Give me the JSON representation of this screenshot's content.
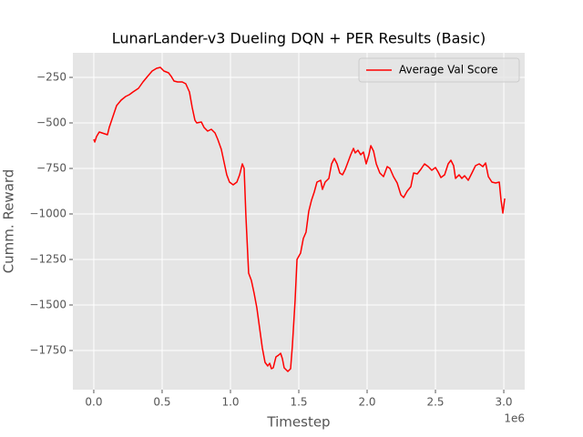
{
  "chart_data": {
    "type": "line",
    "title": "LunarLander-v3 Dueling DQN + PER Results (Basic)",
    "x_label": "Timestep",
    "y_label": "Cumm. Reward",
    "x_offset_label": "1e6",
    "grid": true,
    "legend_position": "upper right",
    "xlim": [
      -153000,
      3153000
    ],
    "ylim": [
      -1965,
      -115
    ],
    "xticks": [
      {
        "value": 0,
        "label": "0.0"
      },
      {
        "value": 500000,
        "label": "0.5"
      },
      {
        "value": 1000000,
        "label": "1.0"
      },
      {
        "value": 1500000,
        "label": "1.5"
      },
      {
        "value": 2000000,
        "label": "2.0"
      },
      {
        "value": 2500000,
        "label": "2.5"
      },
      {
        "value": 3000000,
        "label": "3.0"
      }
    ],
    "yticks": [
      {
        "value": -1750,
        "label": "−1750"
      },
      {
        "value": -1500,
        "label": "−1500"
      },
      {
        "value": -1250,
        "label": "−1250"
      },
      {
        "value": -1000,
        "label": "−1000"
      },
      {
        "value": -750,
        "label": "−750"
      },
      {
        "value": -500,
        "label": "−500"
      },
      {
        "value": -250,
        "label": "−250"
      }
    ],
    "x": [
      0,
      7000,
      20000,
      40000,
      60000,
      100000,
      113000,
      140000,
      167000,
      200000,
      233000,
      260000,
      287000,
      327000,
      360000,
      393000,
      427000,
      460000,
      487000,
      513000,
      547000,
      567000,
      587000,
      613000,
      647000,
      673000,
      700000,
      720000,
      740000,
      753000,
      787000,
      807000,
      833000,
      860000,
      887000,
      907000,
      933000,
      953000,
      973000,
      993000,
      1020000,
      1047000,
      1067000,
      1087000,
      1100000,
      1113000,
      1133000,
      1153000,
      1173000,
      1193000,
      1213000,
      1233000,
      1253000,
      1273000,
      1287000,
      1300000,
      1313000,
      1333000,
      1353000,
      1367000,
      1380000,
      1393000,
      1420000,
      1440000,
      1453000,
      1473000,
      1487000,
      1513000,
      1533000,
      1553000,
      1573000,
      1593000,
      1613000,
      1633000,
      1660000,
      1673000,
      1693000,
      1720000,
      1740000,
      1760000,
      1780000,
      1800000,
      1820000,
      1840000,
      1860000,
      1880000,
      1900000,
      1913000,
      1933000,
      1953000,
      1973000,
      1993000,
      2013000,
      2027000,
      2047000,
      2067000,
      2093000,
      2120000,
      2147000,
      2167000,
      2193000,
      2220000,
      2247000,
      2267000,
      2293000,
      2320000,
      2340000,
      2367000,
      2393000,
      2420000,
      2447000,
      2473000,
      2500000,
      2520000,
      2540000,
      2567000,
      2593000,
      2613000,
      2633000,
      2647000,
      2673000,
      2693000,
      2713000,
      2740000,
      2767000,
      2793000,
      2820000,
      2847000,
      2867000,
      2887000,
      2913000,
      2940000,
      2967000,
      2980000,
      2993000,
      3007000
    ],
    "series": [
      {
        "name": "Average Val Score",
        "color": "#ff0000",
        "values": [
          -590,
          -605,
          -575,
          -550,
          -555,
          -565,
          -525,
          -465,
          -405,
          -375,
          -355,
          -345,
          -330,
          -310,
          -275,
          -245,
          -215,
          -200,
          -195,
          -215,
          -225,
          -245,
          -270,
          -275,
          -275,
          -285,
          -330,
          -415,
          -485,
          -500,
          -495,
          -525,
          -545,
          -535,
          -555,
          -590,
          -645,
          -715,
          -785,
          -825,
          -840,
          -825,
          -785,
          -725,
          -750,
          -1010,
          -1325,
          -1365,
          -1435,
          -1515,
          -1625,
          -1735,
          -1815,
          -1835,
          -1820,
          -1850,
          -1845,
          -1785,
          -1775,
          -1765,
          -1795,
          -1845,
          -1865,
          -1850,
          -1725,
          -1475,
          -1250,
          -1215,
          -1135,
          -1100,
          -985,
          -925,
          -880,
          -825,
          -815,
          -865,
          -825,
          -805,
          -725,
          -695,
          -725,
          -775,
          -785,
          -755,
          -715,
          -675,
          -640,
          -665,
          -650,
          -675,
          -660,
          -725,
          -675,
          -625,
          -655,
          -725,
          -775,
          -795,
          -740,
          -750,
          -795,
          -830,
          -895,
          -910,
          -875,
          -850,
          -775,
          -780,
          -755,
          -725,
          -740,
          -760,
          -745,
          -770,
          -800,
          -785,
          -725,
          -705,
          -735,
          -805,
          -785,
          -805,
          -790,
          -815,
          -775,
          -735,
          -725,
          -740,
          -720,
          -795,
          -825,
          -830,
          -825,
          -925,
          -995,
          -915
        ]
      }
    ]
  }
}
